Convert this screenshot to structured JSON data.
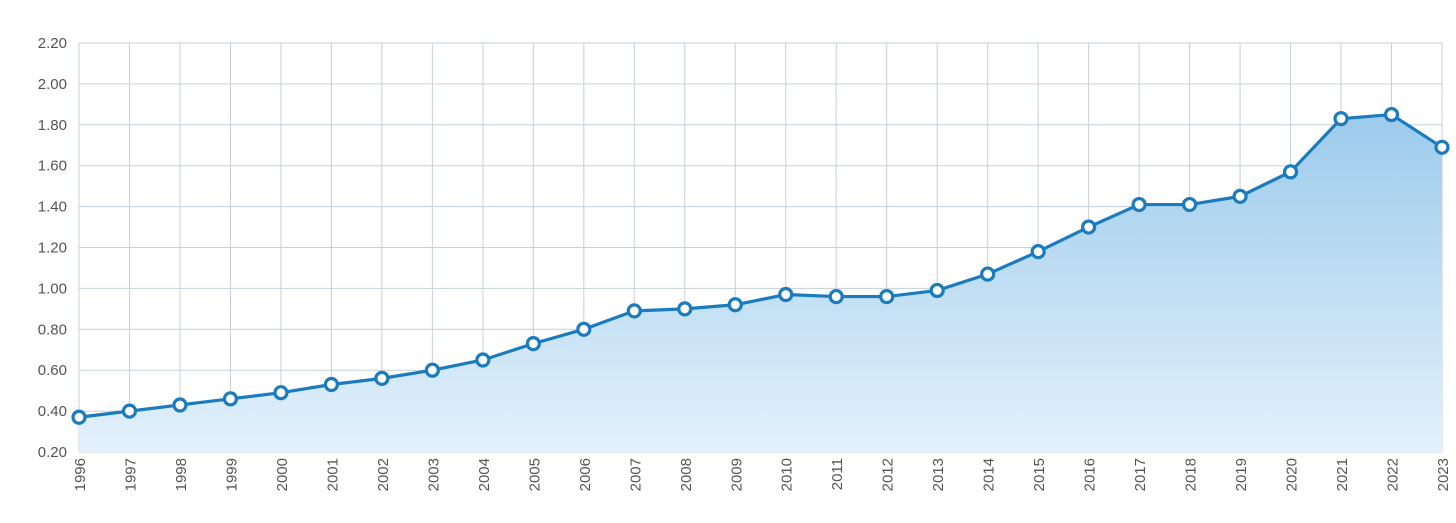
{
  "chart_data": {
    "type": "area",
    "title": "",
    "xlabel": "",
    "ylabel": "",
    "categories": [
      "1996",
      "1997",
      "1998",
      "1999",
      "2000",
      "2001",
      "2002",
      "2003",
      "2004",
      "2005",
      "2006",
      "2007",
      "2008",
      "2009",
      "2010",
      "2011",
      "2012",
      "2013",
      "2014",
      "2015",
      "2016",
      "2017",
      "2018",
      "2019",
      "2020",
      "2021",
      "2022",
      "2023"
    ],
    "series": [
      {
        "values": [
          0.37,
          0.4,
          0.43,
          0.46,
          0.49,
          0.53,
          0.56,
          0.6,
          0.65,
          0.73,
          0.8,
          0.89,
          0.9,
          0.92,
          0.97,
          0.96,
          0.96,
          0.99,
          1.07,
          1.18,
          1.3,
          1.41,
          1.41,
          1.45,
          1.57,
          1.83,
          1.85,
          1.69
        ]
      }
    ],
    "ylim": [
      0.2,
      2.2
    ],
    "yticks": [
      "0.20",
      "0.40",
      "0.60",
      "0.80",
      "1.00",
      "1.20",
      "1.40",
      "1.60",
      "1.80",
      "2.00",
      "2.20"
    ],
    "grid": true,
    "legend": "none",
    "colors": {
      "line": "#1a7bbf",
      "fill_top": "#9ccbec",
      "fill_bottom": "#e4f1fb",
      "marker_fill": "#ffffff",
      "grid": "#c5d0db",
      "axis_text": "#555555"
    }
  }
}
